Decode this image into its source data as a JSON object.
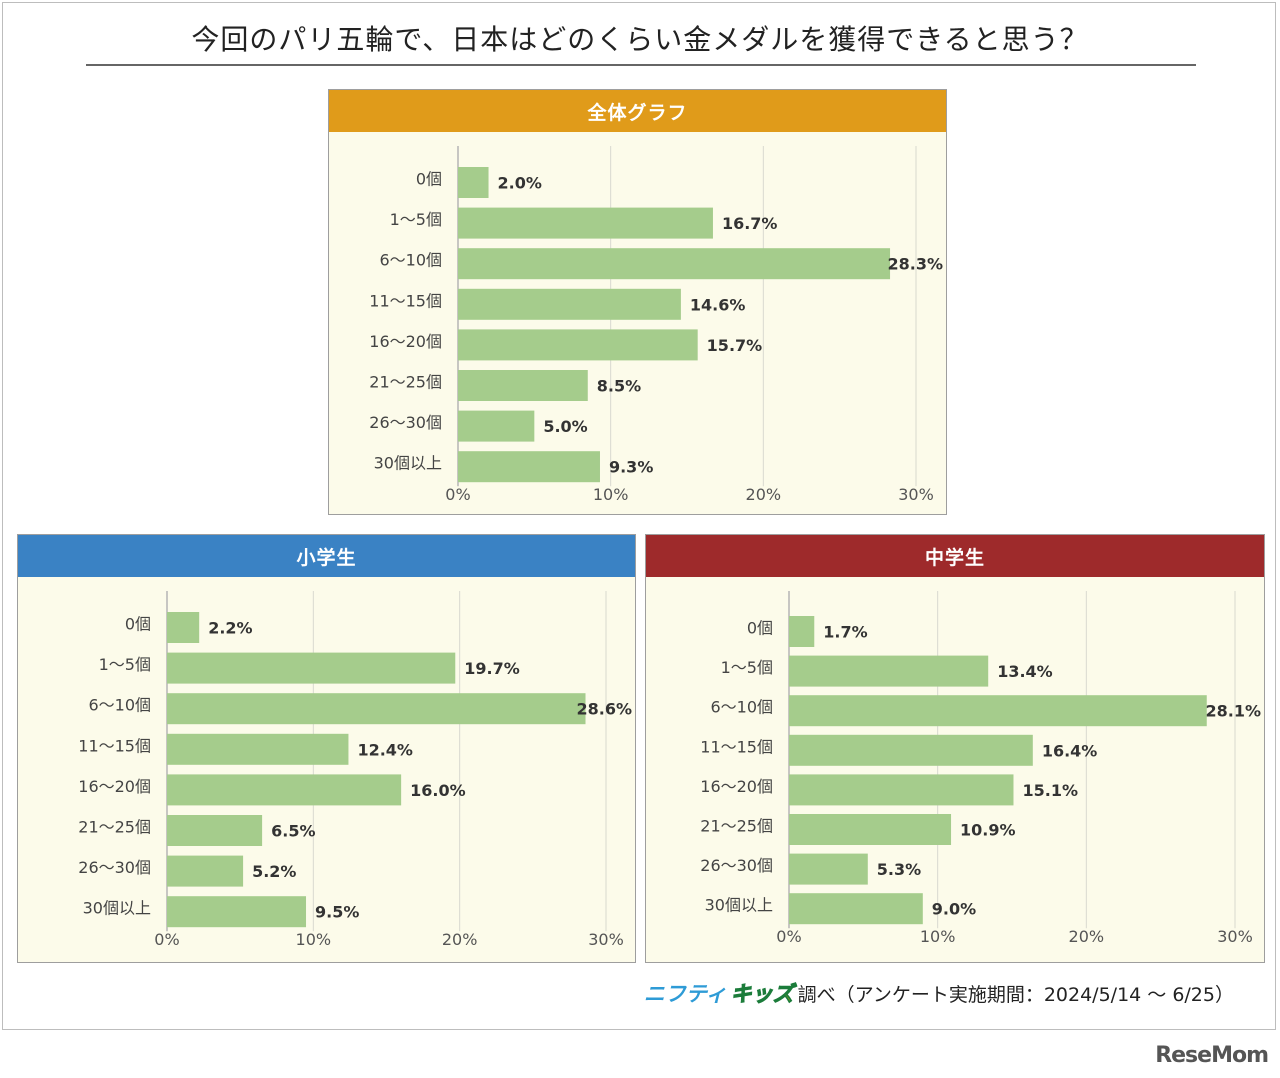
{
  "title": "今回のパリ五輪で、日本はどのくらい金メダルを獲得できると思う？",
  "credit": {
    "brand_part1": "ニフティ",
    "brand_part2": "キッズ",
    "text": "調べ（アンケート実施期間：2024/5/14 ～ 6/25）"
  },
  "logo": "ReseMom",
  "colors": {
    "bar": "#a5cc8c",
    "overall_header": "#e09b1a",
    "elementary_header": "#3a82c4",
    "junior_header": "#9e2a2b",
    "plot_bg": "#fcfbea"
  },
  "chart_data": [
    {
      "type": "bar",
      "orientation": "horizontal",
      "title": "全体グラフ",
      "categories": [
        "0個",
        "1～5個",
        "6～10個",
        "11～15個",
        "16～20個",
        "21～25個",
        "26～30個",
        "30個以上"
      ],
      "values": [
        2.0,
        16.7,
        28.3,
        14.6,
        15.7,
        8.5,
        5.0,
        9.3
      ],
      "value_labels": [
        "2.0%",
        "16.7%",
        "28.3%",
        "14.6%",
        "15.7%",
        "8.5%",
        "5.0%",
        "9.3%"
      ],
      "xticks": [
        "0%",
        "10%",
        "20%",
        "30%"
      ],
      "xlim": [
        0,
        30
      ],
      "grid": true
    },
    {
      "type": "bar",
      "orientation": "horizontal",
      "title": "小学生",
      "categories": [
        "0個",
        "1～5個",
        "6～10個",
        "11～15個",
        "16～20個",
        "21～25個",
        "26～30個",
        "30個以上"
      ],
      "values": [
        2.2,
        19.7,
        28.6,
        12.4,
        16.0,
        6.5,
        5.2,
        9.5
      ],
      "value_labels": [
        "2.2%",
        "19.7%",
        "28.6%",
        "12.4%",
        "16.0%",
        "6.5%",
        "5.2%",
        "9.5%"
      ],
      "xticks": [
        "0%",
        "10%",
        "20%",
        "30%"
      ],
      "xlim": [
        0,
        30
      ],
      "grid": true
    },
    {
      "type": "bar",
      "orientation": "horizontal",
      "title": "中学生",
      "categories": [
        "0個",
        "1～5個",
        "6～10個",
        "11～15個",
        "16～20個",
        "21～25個",
        "26～30個",
        "30個以上"
      ],
      "values": [
        1.7,
        13.4,
        28.1,
        16.4,
        15.1,
        10.9,
        5.3,
        9.0
      ],
      "value_labels": [
        "1.7%",
        "13.4%",
        "28.1%",
        "16.4%",
        "15.1%",
        "10.9%",
        "5.3%",
        "9.0%"
      ],
      "xticks": [
        "0%",
        "10%",
        "20%",
        "30%"
      ],
      "xlim": [
        0,
        30
      ],
      "grid": true
    }
  ]
}
